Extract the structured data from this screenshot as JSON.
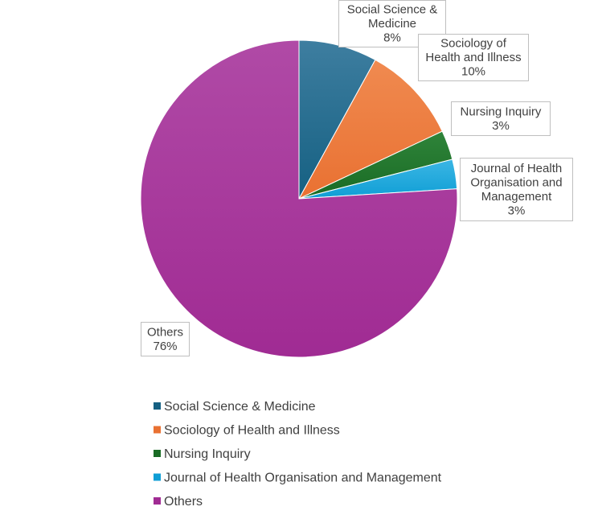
{
  "chart_data": {
    "type": "pie",
    "title": "",
    "start_angle_deg": 0,
    "direction": "clockwise",
    "legend_position": "bottom",
    "slices": [
      {
        "label": "Social Science & Medicine",
        "value": 8,
        "percent_label": "8%",
        "callout_lines": [
          "Social Science &",
          "Medicine",
          "8%"
        ],
        "color": "#156082",
        "color_light": "#3e7ea0"
      },
      {
        "label": "Sociology of Health and Illness",
        "value": 10,
        "percent_label": "10%",
        "callout_lines": [
          "Sociology of",
          "Health and Illness",
          "10%"
        ],
        "color": "#e97132",
        "color_light": "#f08a50"
      },
      {
        "label": "Nursing Inquiry",
        "value": 3,
        "percent_label": "3%",
        "callout_lines": [
          "Nursing Inquiry",
          "3%"
        ],
        "color": "#196b24",
        "color_light": "#2f843a"
      },
      {
        "label": "Journal of Health Organisation and Management",
        "value": 3,
        "percent_label": "3%",
        "callout_lines": [
          "Journal of Health",
          "Organisation and",
          "Management",
          "3%"
        ],
        "color": "#0f9ed5",
        "color_light": "#3bb6e4"
      },
      {
        "label": "Others",
        "value": 76,
        "percent_label": "76%",
        "callout_lines": [
          "Others",
          "76%"
        ],
        "color": "#a02b93",
        "color_light": "#b04aa6"
      }
    ]
  }
}
